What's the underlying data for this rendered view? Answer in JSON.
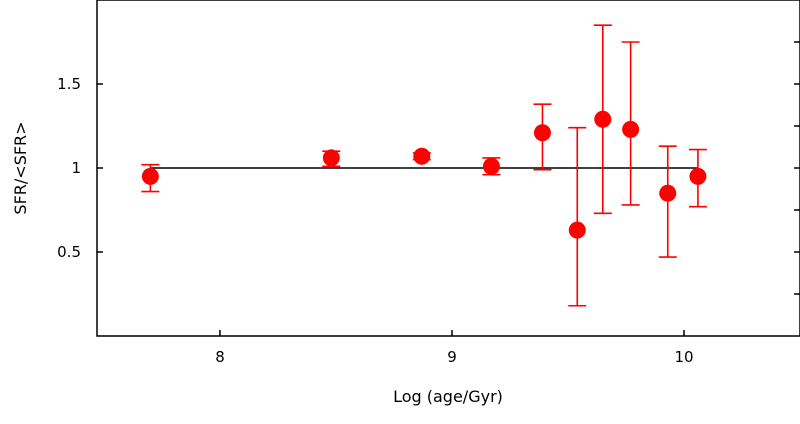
{
  "chart_data": {
    "type": "scatter",
    "title": "",
    "xlabel": "Log (age/Gyr)",
    "ylabel": "SFR/<SFR>",
    "xlim": [
      7.47,
      10.5
    ],
    "ylim": [
      0.0,
      2.0
    ],
    "x_ticks": [
      {
        "value": 8,
        "label": "8"
      },
      {
        "value": 9,
        "label": "9"
      },
      {
        "value": 10,
        "label": "10"
      }
    ],
    "y_ticks": [
      {
        "value": 0.5,
        "label": "0.5"
      },
      {
        "value": 1,
        "label": "1"
      },
      {
        "value": 1.5,
        "label": "1.5"
      }
    ],
    "minor_y_ticks_right": [
      0.25,
      0.75,
      1.25,
      1.75
    ],
    "reference_line": {
      "y": 1,
      "x_from": 7.7,
      "x_to": 10.06,
      "color": "#000000"
    },
    "marker_color": "#ff0000",
    "points": [
      {
        "x": 7.7,
        "y": 0.95,
        "y_low": 0.86,
        "y_high": 1.02
      },
      {
        "x": 8.48,
        "y": 1.06,
        "y_low": 1.01,
        "y_high": 1.1
      },
      {
        "x": 8.87,
        "y": 1.07,
        "y_low": 1.05,
        "y_high": 1.09
      },
      {
        "x": 9.17,
        "y": 1.01,
        "y_low": 0.96,
        "y_high": 1.06
      },
      {
        "x": 9.39,
        "y": 1.21,
        "y_low": 0.99,
        "y_high": 1.38
      },
      {
        "x": 9.54,
        "y": 0.63,
        "y_low": 0.18,
        "y_high": 1.24
      },
      {
        "x": 9.65,
        "y": 1.29,
        "y_low": 0.73,
        "y_high": 1.85
      },
      {
        "x": 9.77,
        "y": 1.23,
        "y_low": 0.78,
        "y_high": 1.75
      },
      {
        "x": 9.93,
        "y": 0.85,
        "y_low": 0.47,
        "y_high": 1.13
      },
      {
        "x": 10.06,
        "y": 0.95,
        "y_low": 0.77,
        "y_high": 1.11
      }
    ]
  }
}
